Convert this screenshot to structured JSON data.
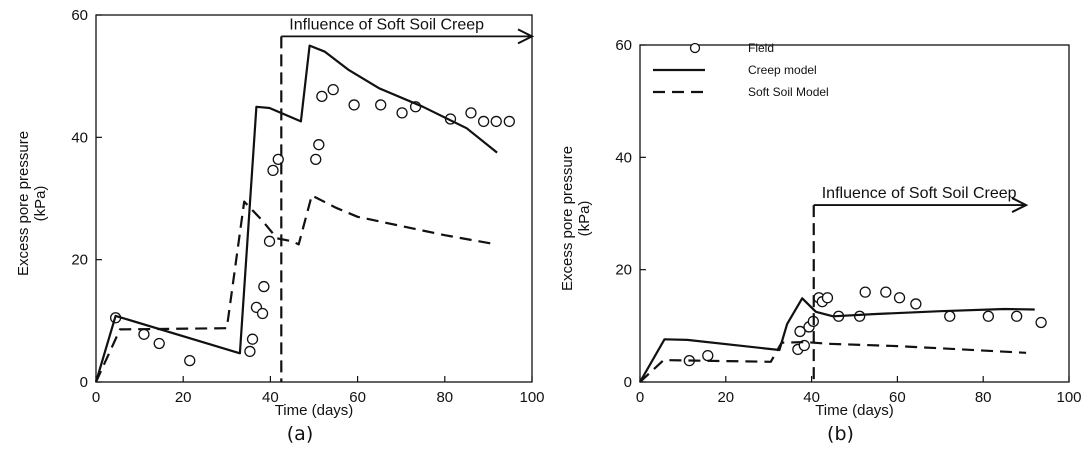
{
  "chart_data": [
    {
      "type": "line",
      "panel_label": "(a)",
      "xlabel": "Time (days)",
      "ylabel_line1": "Excess pore pressure",
      "ylabel_line2": "(kPa)",
      "xlim": [
        0,
        100
      ],
      "ylim": [
        0,
        60
      ],
      "xticks": [
        0,
        20,
        40,
        60,
        80,
        100
      ],
      "yticks": [
        0,
        20,
        40,
        60
      ],
      "annotation": {
        "text": "Influence of Soft Soil Creep",
        "x_start": 42.5,
        "x_end": 100,
        "y": 56.5,
        "vline_x": 42.5
      },
      "legend": [],
      "series": [
        {
          "kind": "scatter",
          "points": [
            [
              4.5,
              10.5
            ],
            [
              11,
              7.8
            ],
            [
              14.5,
              6.3
            ],
            [
              21.5,
              3.5
            ],
            [
              35.3,
              5
            ],
            [
              35.9,
              7
            ],
            [
              36.8,
              12.2
            ],
            [
              38.2,
              11.2
            ],
            [
              38.5,
              15.6
            ],
            [
              39.8,
              23
            ],
            [
              40.6,
              34.6
            ],
            [
              41.8,
              36.4
            ],
            [
              50.4,
              36.4
            ],
            [
              51.1,
              38.8
            ],
            [
              51.8,
              46.7
            ],
            [
              54.4,
              47.8
            ],
            [
              59.2,
              45.3
            ],
            [
              65.3,
              45.3
            ],
            [
              70.2,
              44
            ],
            [
              73.3,
              45
            ],
            [
              81.3,
              43
            ],
            [
              86,
              44
            ],
            [
              88.9,
              42.6
            ],
            [
              91.8,
              42.6
            ],
            [
              94.8,
              42.6
            ]
          ]
        },
        {
          "kind": "solid",
          "points": [
            [
              0,
              0
            ],
            [
              4.5,
              10.8
            ],
            [
              33,
              4.7
            ],
            [
              36.8,
              45
            ],
            [
              39.8,
              44.8
            ],
            [
              47,
              42.6
            ],
            [
              49,
              55
            ],
            [
              52.5,
              54
            ],
            [
              58,
              51
            ],
            [
              65,
              48
            ],
            [
              75,
              45
            ],
            [
              85,
              41.5
            ],
            [
              92,
              37.5
            ]
          ]
        },
        {
          "kind": "dashed",
          "points": [
            [
              0,
              0
            ],
            [
              5.5,
              8.6
            ],
            [
              30,
              8.8
            ],
            [
              34,
              29.5
            ],
            [
              38,
              26.5
            ],
            [
              41.5,
              23.5
            ],
            [
              45,
              23
            ],
            [
              46.5,
              22.5
            ],
            [
              49.5,
              30.5
            ],
            [
              55,
              28.5
            ],
            [
              60,
              27
            ],
            [
              70,
              25.5
            ],
            [
              80,
              24
            ],
            [
              91,
              22.6
            ]
          ]
        }
      ]
    },
    {
      "type": "line",
      "panel_label": "(b)",
      "xlabel": "Time (days)",
      "ylabel_line1": "Excess pore pressure",
      "ylabel_line2": "(kPa)",
      "xlim": [
        0,
        100
      ],
      "ylim": [
        0,
        60
      ],
      "xticks": [
        0,
        20,
        40,
        60,
        80,
        100
      ],
      "yticks": [
        0,
        20,
        40,
        60
      ],
      "annotation": {
        "text": "Influence of Soft Soil Creep",
        "x_start": 40.5,
        "x_end": 90,
        "y": 31.5,
        "vline_x": 40.5
      },
      "legend": [
        "Field",
        "Creep model",
        "Soft Soil Model"
      ],
      "series": [
        {
          "kind": "scatter",
          "name": "Field",
          "points": [
            [
              11.5,
              3.8
            ],
            [
              15.8,
              4.7
            ],
            [
              36.8,
              5.8
            ],
            [
              37.3,
              9
            ],
            [
              38.3,
              6.5
            ],
            [
              39.4,
              9.8
            ],
            [
              40.4,
              10.8
            ],
            [
              41.7,
              15
            ],
            [
              42.5,
              14.3
            ],
            [
              43.7,
              15
            ],
            [
              46.3,
              11.7
            ],
            [
              51.2,
              11.7
            ],
            [
              52.5,
              16
            ],
            [
              57.3,
              16
            ],
            [
              60.5,
              15
            ],
            [
              64.3,
              13.9
            ],
            [
              72.2,
              11.7
            ],
            [
              81.2,
              11.7
            ],
            [
              87.8,
              11.7
            ],
            [
              93.5,
              10.6
            ]
          ]
        },
        {
          "kind": "solid",
          "name": "Creep model",
          "points": [
            [
              0,
              0
            ],
            [
              5.7,
              7.6
            ],
            [
              11,
              7.5
            ],
            [
              32.5,
              5.7
            ],
            [
              34.3,
              10.3
            ],
            [
              37.8,
              14.9
            ],
            [
              41,
              12.5
            ],
            [
              45,
              11.7
            ],
            [
              55,
              12.1
            ],
            [
              70,
              12.6
            ],
            [
              85,
              13
            ],
            [
              92,
              12.9
            ]
          ]
        },
        {
          "kind": "dashed",
          "name": "Soft Soil Model",
          "points": [
            [
              0,
              0
            ],
            [
              5.5,
              3.9
            ],
            [
              30.5,
              3.6
            ],
            [
              33,
              7
            ],
            [
              38.5,
              7.1
            ],
            [
              44,
              6.8
            ],
            [
              60,
              6.4
            ],
            [
              75,
              5.8
            ],
            [
              90,
              5.2
            ]
          ]
        }
      ]
    }
  ]
}
